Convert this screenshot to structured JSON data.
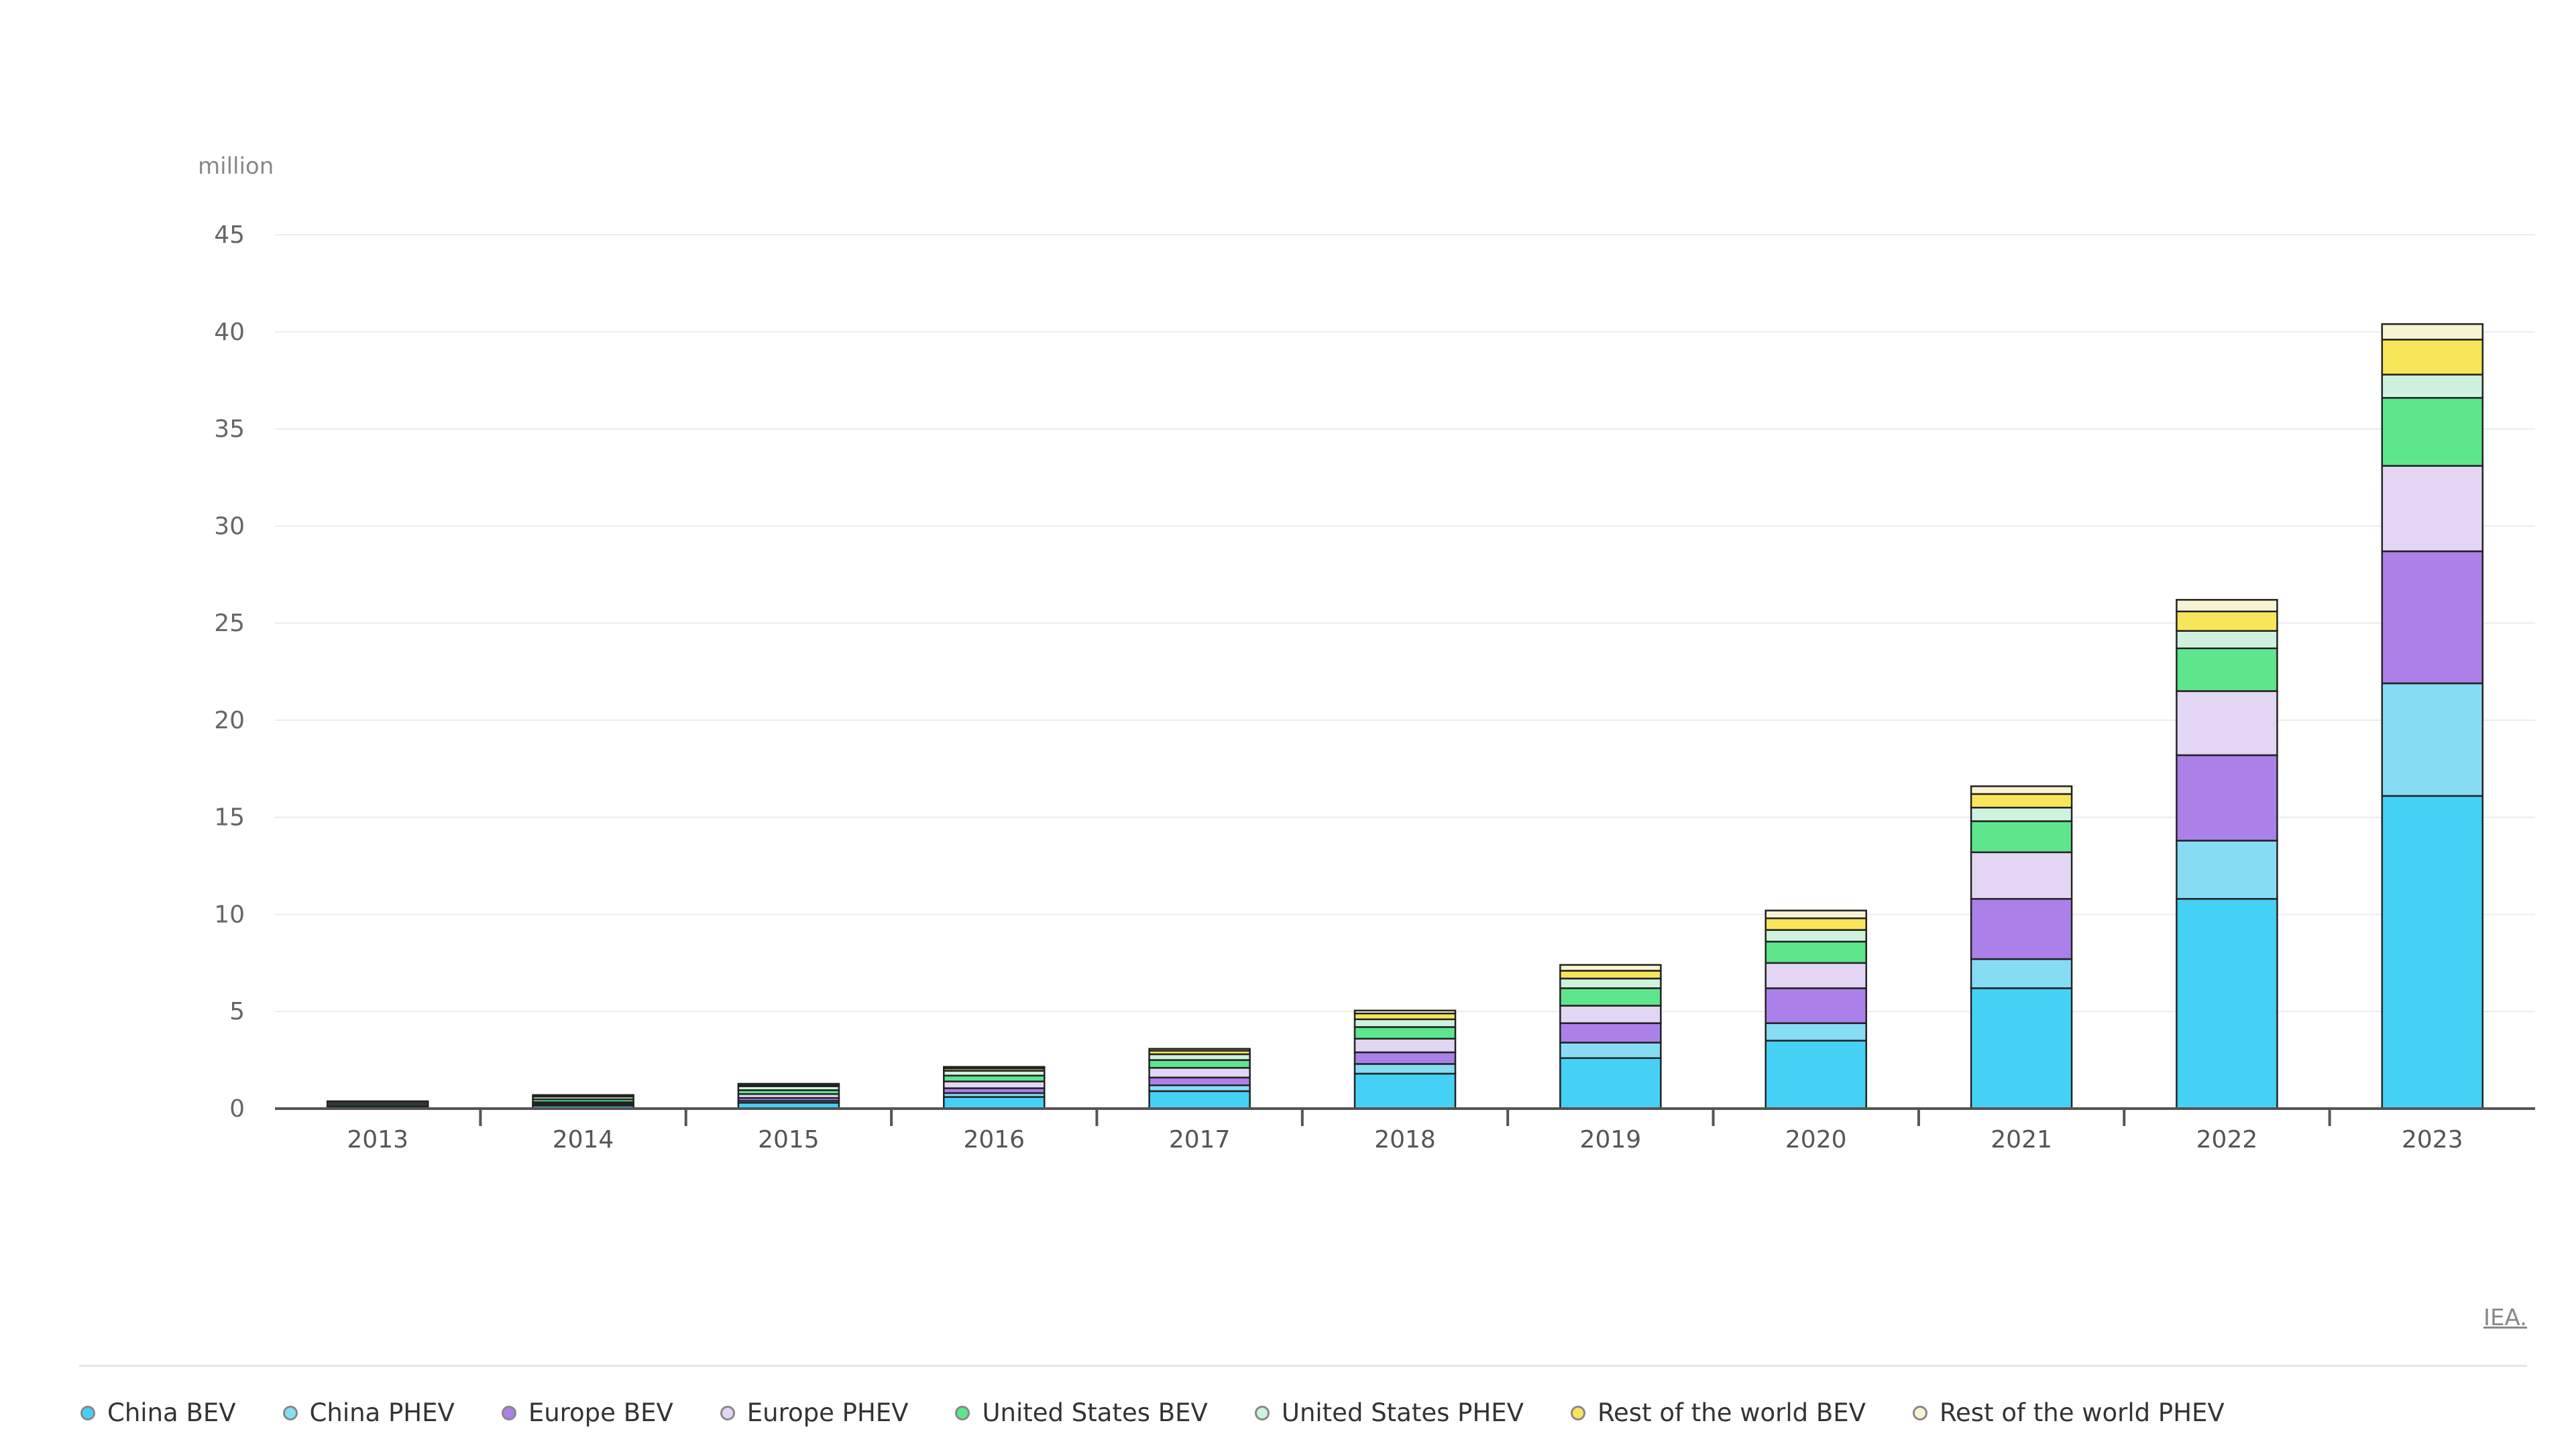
{
  "chart_data": {
    "type": "bar",
    "stacked": true,
    "title": "",
    "unit_label": "million",
    "source": "IEA.",
    "categories": [
      "2013",
      "2014",
      "2015",
      "2016",
      "2017",
      "2018",
      "2019",
      "2020",
      "2021",
      "2022",
      "2023"
    ],
    "ylim": [
      0,
      45
    ],
    "yticks": [
      0,
      5,
      10,
      15,
      20,
      25,
      30,
      35,
      40,
      45
    ],
    "grid": true,
    "legend_position": "bottom",
    "series": [
      {
        "name": "China BEV",
        "color": "#45D1F5",
        "values": [
          0.05,
          0.15,
          0.3,
          0.6,
          0.9,
          1.8,
          2.6,
          3.5,
          6.2,
          10.8,
          16.1
        ]
      },
      {
        "name": "China PHEV",
        "color": "#86DDF3",
        "values": [
          0.02,
          0.05,
          0.1,
          0.2,
          0.3,
          0.5,
          0.8,
          0.9,
          1.5,
          3.0,
          5.8
        ]
      },
      {
        "name": "Europe BEV",
        "color": "#AB80E8",
        "values": [
          0.03,
          0.06,
          0.15,
          0.25,
          0.4,
          0.6,
          1.0,
          1.8,
          3.1,
          4.4,
          6.8
        ]
      },
      {
        "name": "Europe PHEV",
        "color": "#E2D6F4",
        "values": [
          0.03,
          0.07,
          0.2,
          0.35,
          0.5,
          0.7,
          0.9,
          1.3,
          2.4,
          3.3,
          4.4
        ]
      },
      {
        "name": "United States BEV",
        "color": "#5EE68C",
        "values": [
          0.1,
          0.15,
          0.2,
          0.3,
          0.4,
          0.6,
          0.9,
          1.1,
          1.6,
          2.2,
          3.5
        ]
      },
      {
        "name": "United States PHEV",
        "color": "#CFF2DF",
        "values": [
          0.1,
          0.14,
          0.2,
          0.25,
          0.3,
          0.4,
          0.5,
          0.6,
          0.7,
          0.9,
          1.2
        ]
      },
      {
        "name": "Rest of the world BEV",
        "color": "#F8E65A",
        "values": [
          0.03,
          0.05,
          0.08,
          0.12,
          0.18,
          0.3,
          0.4,
          0.6,
          0.7,
          1.0,
          1.8
        ]
      },
      {
        "name": "Rest of the world PHEV",
        "color": "#F8F3D2",
        "values": [
          0.02,
          0.03,
          0.05,
          0.08,
          0.1,
          0.15,
          0.3,
          0.4,
          0.4,
          0.6,
          0.8
        ]
      }
    ]
  }
}
